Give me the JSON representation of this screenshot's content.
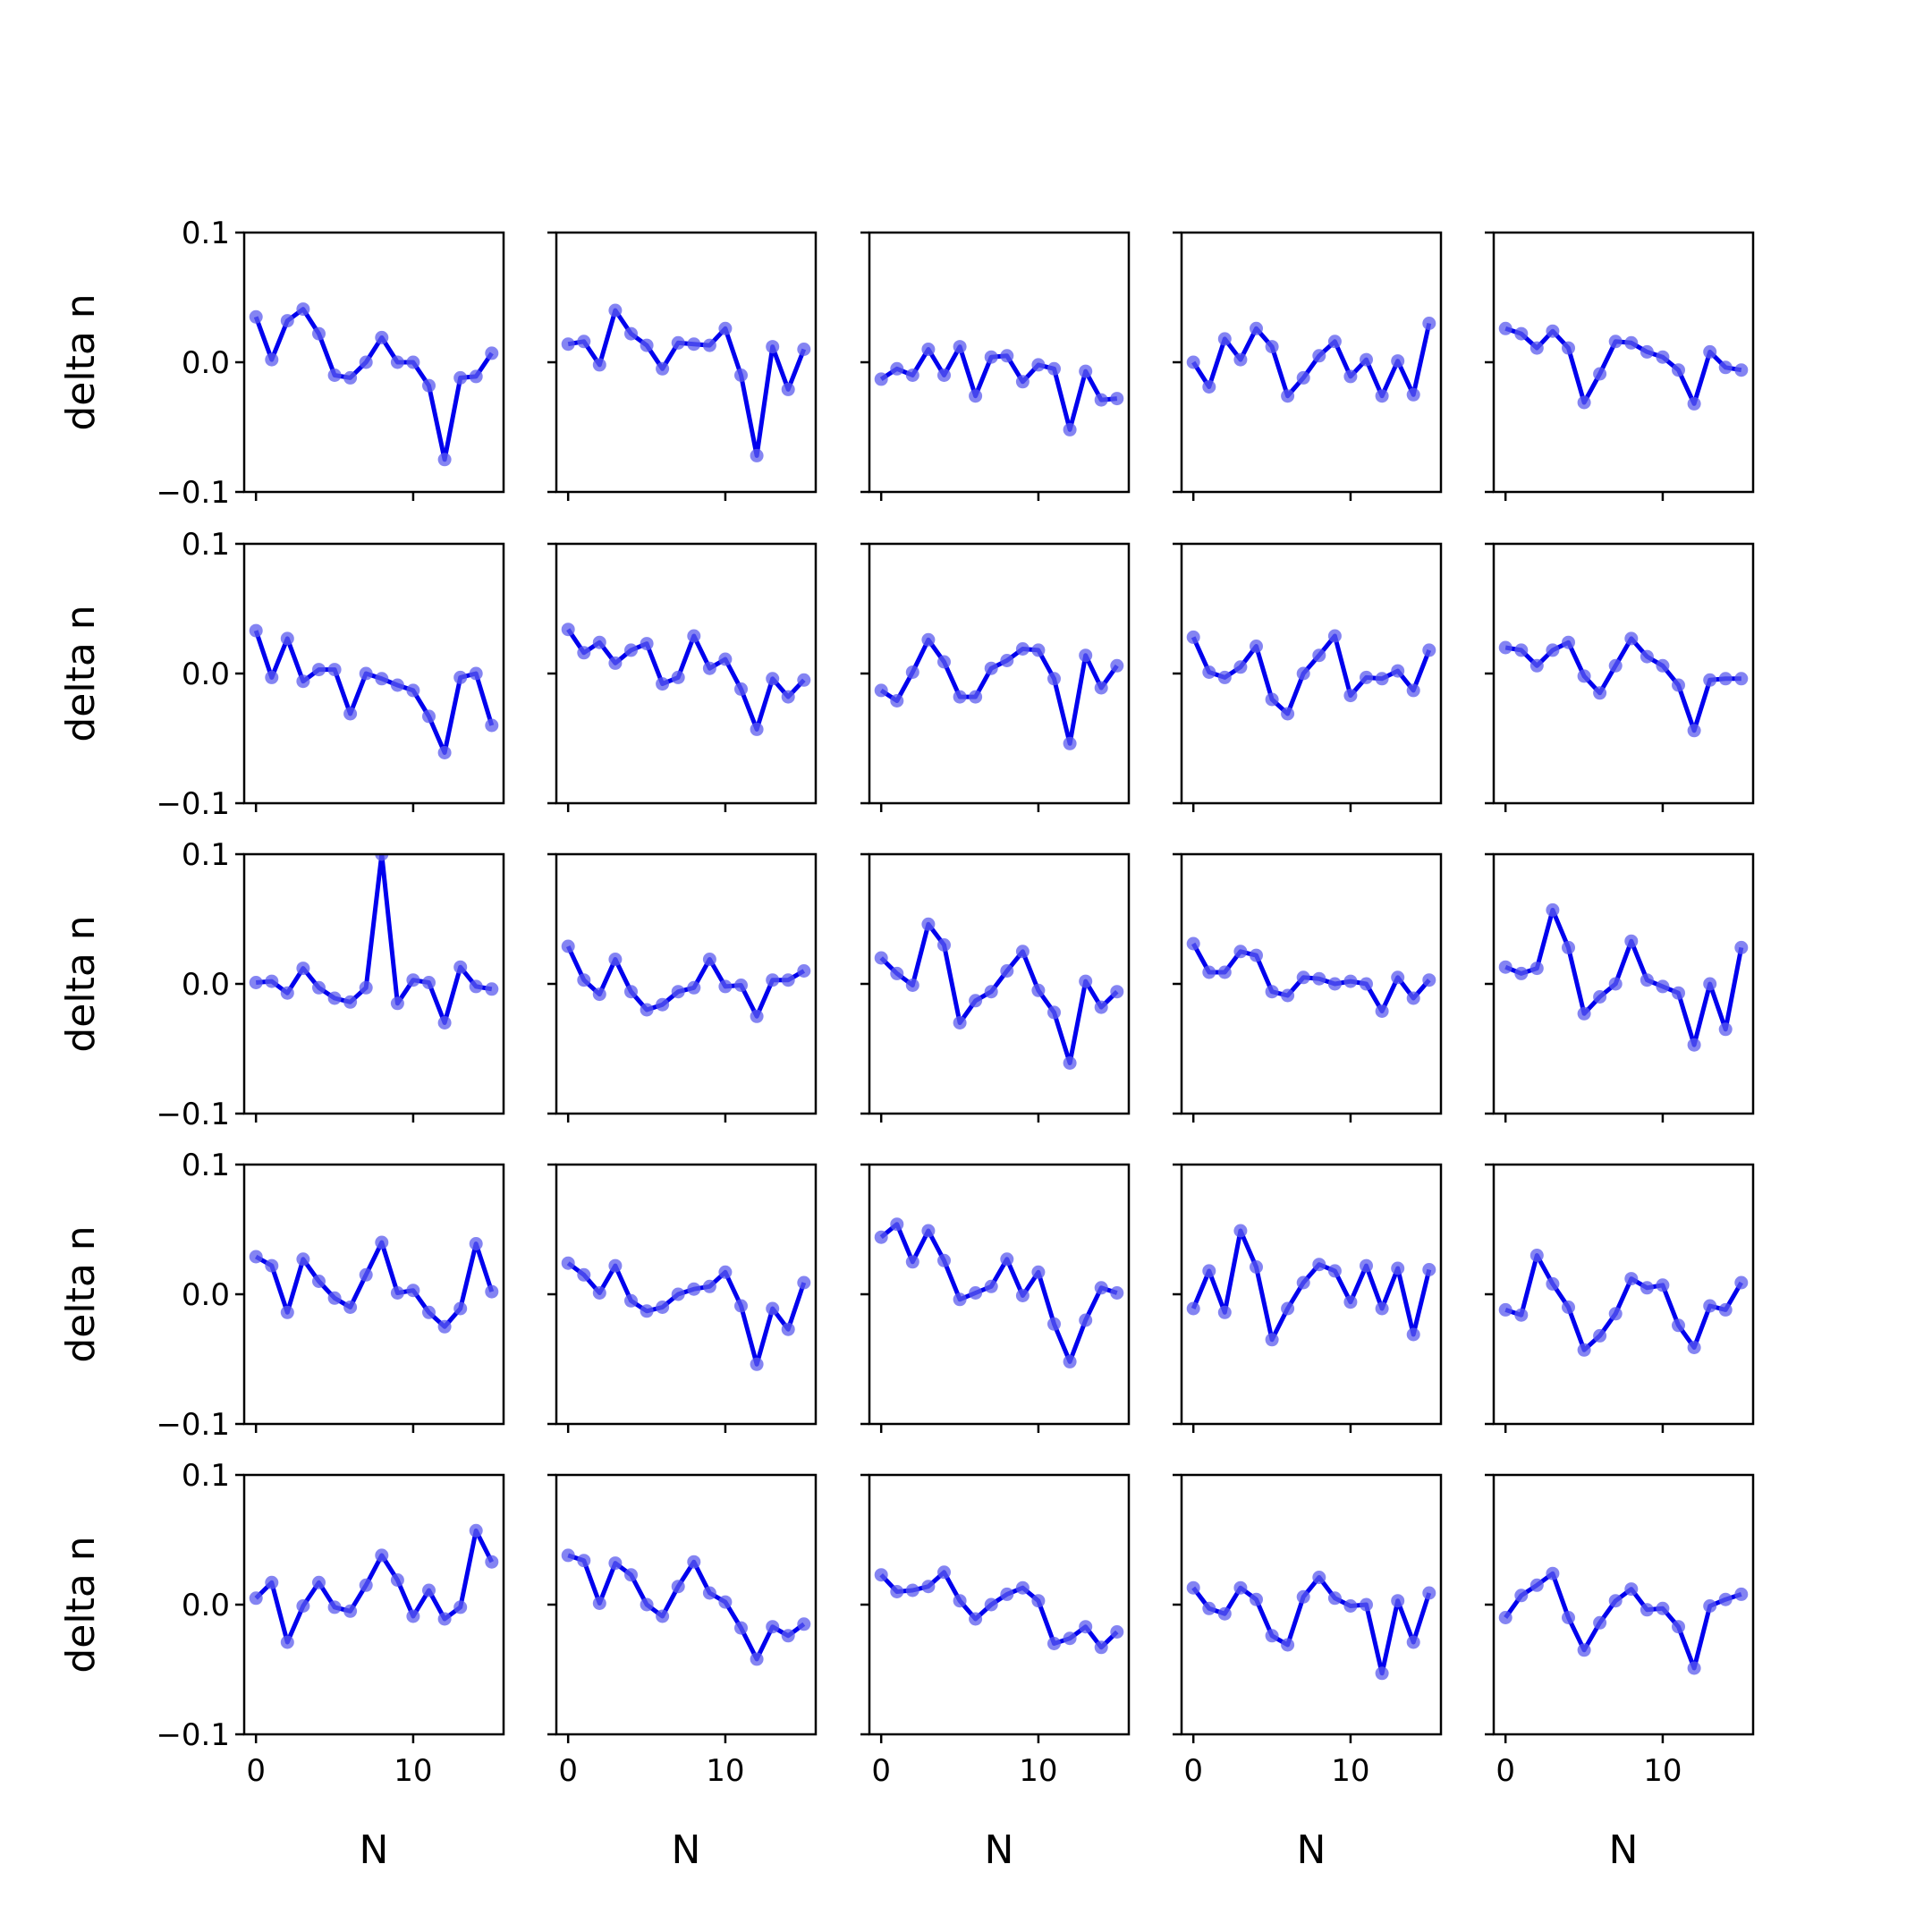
{
  "figure": {
    "rows": 5,
    "cols": 5,
    "line_color": "#0000ee",
    "marker_color": "#5b5bee"
  },
  "axes": {
    "xlabel": "N",
    "ylabel": "delta n",
    "xlim": [
      -0.75,
      15.75
    ],
    "ylim": [
      -0.1,
      0.1
    ],
    "yticks": [
      -0.1,
      0.0,
      0.1
    ],
    "ytick_labels": [
      "−0.1",
      "0.0",
      "0.1"
    ],
    "xticks": [
      0,
      10
    ],
    "xtick_labels": [
      "0",
      "10"
    ]
  },
  "chart_data": [
    {
      "type": "line",
      "row": 0,
      "col": 0,
      "x": [
        0,
        1,
        2,
        3,
        4,
        5,
        6,
        7,
        8,
        9,
        10,
        11,
        12,
        13,
        14,
        15
      ],
      "values": [
        0.035,
        0.002,
        0.032,
        0.041,
        0.022,
        -0.01,
        -0.012,
        0.0,
        0.019,
        0.0,
        0.0,
        -0.018,
        -0.075,
        -0.012,
        -0.011,
        0.007
      ]
    },
    {
      "type": "line",
      "row": 0,
      "col": 1,
      "x": [
        0,
        1,
        2,
        3,
        4,
        5,
        6,
        7,
        8,
        9,
        10,
        11,
        12,
        13,
        14,
        15
      ],
      "values": [
        0.014,
        0.016,
        -0.002,
        0.04,
        0.022,
        0.013,
        -0.005,
        0.015,
        0.014,
        0.013,
        0.026,
        -0.01,
        -0.072,
        0.012,
        -0.021,
        0.01
      ]
    },
    {
      "type": "line",
      "row": 0,
      "col": 2,
      "x": [
        0,
        1,
        2,
        3,
        4,
        5,
        6,
        7,
        8,
        9,
        10,
        11,
        12,
        13,
        14,
        15
      ],
      "values": [
        -0.013,
        -0.005,
        -0.01,
        0.01,
        -0.01,
        0.012,
        -0.026,
        0.004,
        0.005,
        -0.015,
        -0.002,
        -0.005,
        -0.052,
        -0.007,
        -0.029,
        -0.028
      ]
    },
    {
      "type": "line",
      "row": 0,
      "col": 3,
      "x": [
        0,
        1,
        2,
        3,
        4,
        5,
        6,
        7,
        8,
        9,
        10,
        11,
        12,
        13,
        14,
        15
      ],
      "values": [
        0.0,
        -0.019,
        0.018,
        0.002,
        0.026,
        0.012,
        -0.026,
        -0.012,
        0.005,
        0.016,
        -0.011,
        0.002,
        -0.026,
        0.001,
        -0.025,
        0.03
      ]
    },
    {
      "type": "line",
      "row": 0,
      "col": 4,
      "x": [
        0,
        1,
        2,
        3,
        4,
        5,
        6,
        7,
        8,
        9,
        10,
        11,
        12,
        13,
        14,
        15
      ],
      "values": [
        0.026,
        0.022,
        0.011,
        0.024,
        0.011,
        -0.031,
        -0.009,
        0.016,
        0.015,
        0.008,
        0.004,
        -0.006,
        -0.032,
        0.008,
        -0.004,
        -0.006
      ]
    },
    {
      "type": "line",
      "row": 1,
      "col": 0,
      "x": [
        0,
        1,
        2,
        3,
        4,
        5,
        6,
        7,
        8,
        9,
        10,
        11,
        12,
        13,
        14,
        15
      ],
      "values": [
        0.033,
        -0.003,
        0.027,
        -0.006,
        0.003,
        0.003,
        -0.031,
        0.0,
        -0.004,
        -0.009,
        -0.013,
        -0.033,
        -0.061,
        -0.003,
        0.0,
        -0.04
      ]
    },
    {
      "type": "line",
      "row": 1,
      "col": 1,
      "x": [
        0,
        1,
        2,
        3,
        4,
        5,
        6,
        7,
        8,
        9,
        10,
        11,
        12,
        13,
        14,
        15
      ],
      "values": [
        0.034,
        0.016,
        0.024,
        0.008,
        0.018,
        0.023,
        -0.008,
        -0.003,
        0.029,
        0.004,
        0.011,
        -0.012,
        -0.043,
        -0.004,
        -0.018,
        -0.005
      ]
    },
    {
      "type": "line",
      "row": 1,
      "col": 2,
      "x": [
        0,
        1,
        2,
        3,
        4,
        5,
        6,
        7,
        8,
        9,
        10,
        11,
        12,
        13,
        14,
        15
      ],
      "values": [
        -0.013,
        -0.021,
        0.001,
        0.026,
        0.009,
        -0.018,
        -0.018,
        0.004,
        0.01,
        0.019,
        0.018,
        -0.004,
        -0.054,
        0.014,
        -0.011,
        0.006
      ]
    },
    {
      "type": "line",
      "row": 1,
      "col": 3,
      "x": [
        0,
        1,
        2,
        3,
        4,
        5,
        6,
        7,
        8,
        9,
        10,
        11,
        12,
        13,
        14,
        15
      ],
      "values": [
        0.028,
        0.001,
        -0.003,
        0.005,
        0.021,
        -0.02,
        -0.031,
        0.0,
        0.014,
        0.029,
        -0.017,
        -0.003,
        -0.004,
        0.002,
        -0.013,
        0.018
      ]
    },
    {
      "type": "line",
      "row": 1,
      "col": 4,
      "x": [
        0,
        1,
        2,
        3,
        4,
        5,
        6,
        7,
        8,
        9,
        10,
        11,
        12,
        13,
        14,
        15
      ],
      "values": [
        0.02,
        0.018,
        0.006,
        0.018,
        0.024,
        -0.002,
        -0.015,
        0.006,
        0.027,
        0.013,
        0.006,
        -0.009,
        -0.044,
        -0.005,
        -0.004,
        -0.004
      ]
    },
    {
      "type": "line",
      "row": 2,
      "col": 0,
      "x": [
        0,
        1,
        2,
        3,
        4,
        5,
        6,
        7,
        8,
        9,
        10,
        11,
        12,
        13,
        14,
        15
      ],
      "values": [
        0.001,
        0.002,
        -0.007,
        0.012,
        -0.003,
        -0.011,
        -0.014,
        -0.003,
        0.1,
        -0.015,
        0.003,
        0.001,
        -0.03,
        0.013,
        -0.002,
        -0.004
      ]
    },
    {
      "type": "line",
      "row": 2,
      "col": 1,
      "x": [
        0,
        1,
        2,
        3,
        4,
        5,
        6,
        7,
        8,
        9,
        10,
        11,
        12,
        13,
        14,
        15
      ],
      "values": [
        0.029,
        0.003,
        -0.008,
        0.019,
        -0.006,
        -0.02,
        -0.016,
        -0.006,
        -0.003,
        0.019,
        -0.002,
        -0.001,
        -0.025,
        0.003,
        0.003,
        0.01
      ]
    },
    {
      "type": "line",
      "row": 2,
      "col": 2,
      "x": [
        0,
        1,
        2,
        3,
        4,
        5,
        6,
        7,
        8,
        9,
        10,
        11,
        12,
        13,
        14,
        15
      ],
      "values": [
        0.02,
        0.008,
        -0.001,
        0.046,
        0.03,
        -0.03,
        -0.013,
        -0.006,
        0.01,
        0.025,
        -0.005,
        -0.022,
        -0.061,
        0.002,
        -0.018,
        -0.006
      ]
    },
    {
      "type": "line",
      "row": 2,
      "col": 3,
      "x": [
        0,
        1,
        2,
        3,
        4,
        5,
        6,
        7,
        8,
        9,
        10,
        11,
        12,
        13,
        14,
        15
      ],
      "values": [
        0.031,
        0.009,
        0.009,
        0.025,
        0.022,
        -0.006,
        -0.009,
        0.005,
        0.004,
        0.0,
        0.002,
        0.0,
        -0.021,
        0.005,
        -0.011,
        0.003
      ]
    },
    {
      "type": "line",
      "row": 2,
      "col": 4,
      "x": [
        0,
        1,
        2,
        3,
        4,
        5,
        6,
        7,
        8,
        9,
        10,
        11,
        12,
        13,
        14,
        15
      ],
      "values": [
        0.013,
        0.008,
        0.012,
        0.057,
        0.028,
        -0.023,
        -0.01,
        0.0,
        0.033,
        0.003,
        -0.002,
        -0.007,
        -0.047,
        0.0,
        -0.035,
        0.028
      ]
    },
    {
      "type": "line",
      "row": 3,
      "col": 0,
      "x": [
        0,
        1,
        2,
        3,
        4,
        5,
        6,
        7,
        8,
        9,
        10,
        11,
        12,
        13,
        14,
        15
      ],
      "values": [
        0.029,
        0.022,
        -0.014,
        0.027,
        0.01,
        -0.003,
        -0.01,
        0.015,
        0.04,
        0.001,
        0.003,
        -0.014,
        -0.025,
        -0.011,
        0.039,
        0.002
      ]
    },
    {
      "type": "line",
      "row": 3,
      "col": 1,
      "x": [
        0,
        1,
        2,
        3,
        4,
        5,
        6,
        7,
        8,
        9,
        10,
        11,
        12,
        13,
        14,
        15
      ],
      "values": [
        0.024,
        0.015,
        0.001,
        0.022,
        -0.005,
        -0.013,
        -0.01,
        0.0,
        0.004,
        0.006,
        0.017,
        -0.009,
        -0.054,
        -0.011,
        -0.027,
        0.009
      ]
    },
    {
      "type": "line",
      "row": 3,
      "col": 2,
      "x": [
        0,
        1,
        2,
        3,
        4,
        5,
        6,
        7,
        8,
        9,
        10,
        11,
        12,
        13,
        14,
        15
      ],
      "values": [
        0.044,
        0.054,
        0.025,
        0.049,
        0.026,
        -0.004,
        0.001,
        0.006,
        0.027,
        -0.001,
        0.017,
        -0.023,
        -0.052,
        -0.02,
        0.005,
        0.001
      ]
    },
    {
      "type": "line",
      "row": 3,
      "col": 3,
      "x": [
        0,
        1,
        2,
        3,
        4,
        5,
        6,
        7,
        8,
        9,
        10,
        11,
        12,
        13,
        14,
        15
      ],
      "values": [
        -0.011,
        0.018,
        -0.014,
        0.049,
        0.021,
        -0.035,
        -0.011,
        0.009,
        0.023,
        0.018,
        -0.006,
        0.022,
        -0.011,
        0.02,
        -0.031,
        0.019
      ]
    },
    {
      "type": "line",
      "row": 3,
      "col": 4,
      "x": [
        0,
        1,
        2,
        3,
        4,
        5,
        6,
        7,
        8,
        9,
        10,
        11,
        12,
        13,
        14,
        15
      ],
      "values": [
        -0.012,
        -0.016,
        0.03,
        0.008,
        -0.01,
        -0.043,
        -0.032,
        -0.015,
        0.012,
        0.005,
        0.007,
        -0.024,
        -0.041,
        -0.009,
        -0.012,
        0.009
      ]
    },
    {
      "type": "line",
      "row": 4,
      "col": 0,
      "x": [
        0,
        1,
        2,
        3,
        4,
        5,
        6,
        7,
        8,
        9,
        10,
        11,
        12,
        13,
        14,
        15
      ],
      "values": [
        0.005,
        0.017,
        -0.029,
        -0.001,
        0.017,
        -0.002,
        -0.005,
        0.015,
        0.038,
        0.019,
        -0.009,
        0.011,
        -0.011,
        -0.002,
        0.057,
        0.033
      ]
    },
    {
      "type": "line",
      "row": 4,
      "col": 1,
      "x": [
        0,
        1,
        2,
        3,
        4,
        5,
        6,
        7,
        8,
        9,
        10,
        11,
        12,
        13,
        14,
        15
      ],
      "values": [
        0.038,
        0.034,
        0.001,
        0.032,
        0.023,
        0.0,
        -0.009,
        0.014,
        0.033,
        0.009,
        0.002,
        -0.018,
        -0.042,
        -0.017,
        -0.024,
        -0.015
      ]
    },
    {
      "type": "line",
      "row": 4,
      "col": 2,
      "x": [
        0,
        1,
        2,
        3,
        4,
        5,
        6,
        7,
        8,
        9,
        10,
        11,
        12,
        13,
        14,
        15
      ],
      "values": [
        0.023,
        0.01,
        0.011,
        0.014,
        0.025,
        0.003,
        -0.011,
        0.0,
        0.008,
        0.013,
        0.003,
        -0.03,
        -0.026,
        -0.017,
        -0.033,
        -0.021
      ]
    },
    {
      "type": "line",
      "row": 4,
      "col": 3,
      "x": [
        0,
        1,
        2,
        3,
        4,
        5,
        6,
        7,
        8,
        9,
        10,
        11,
        12,
        13,
        14,
        15
      ],
      "values": [
        0.013,
        -0.003,
        -0.007,
        0.013,
        0.004,
        -0.024,
        -0.031,
        0.006,
        0.021,
        0.005,
        -0.001,
        0.0,
        -0.053,
        0.003,
        -0.029,
        0.009
      ]
    },
    {
      "type": "line",
      "row": 4,
      "col": 4,
      "x": [
        0,
        1,
        2,
        3,
        4,
        5,
        6,
        7,
        8,
        9,
        10,
        11,
        12,
        13,
        14,
        15
      ],
      "values": [
        -0.01,
        0.007,
        0.015,
        0.024,
        -0.01,
        -0.035,
        -0.014,
        0.003,
        0.012,
        -0.004,
        -0.003,
        -0.017,
        -0.049,
        -0.001,
        0.004,
        0.008
      ]
    }
  ]
}
